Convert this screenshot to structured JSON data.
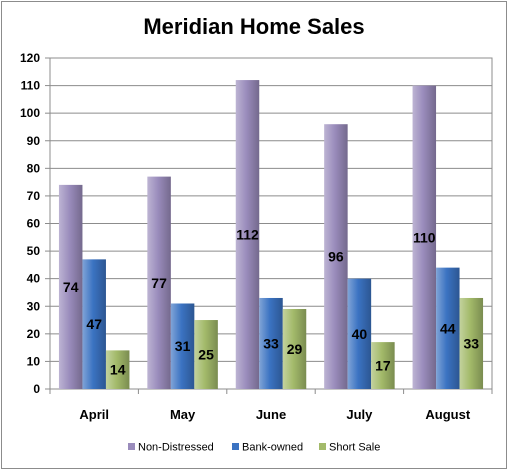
{
  "chart_data": {
    "type": "bar",
    "title": "Meridian Home Sales",
    "categories": [
      "April",
      "May",
      "June",
      "July",
      "August"
    ],
    "series": [
      {
        "name": "Non-Distressed",
        "values": [
          74,
          77,
          112,
          96,
          110
        ],
        "color": "#9a8cbc"
      },
      {
        "name": "Bank-owned",
        "values": [
          47,
          31,
          33,
          40,
          44
        ],
        "color": "#3b73c2"
      },
      {
        "name": "Short Sale",
        "values": [
          14,
          25,
          29,
          17,
          33
        ],
        "color": "#a3ba6a"
      }
    ],
    "ylim": [
      0,
      120
    ],
    "yticks": [
      0,
      10,
      20,
      30,
      40,
      50,
      60,
      70,
      80,
      90,
      100,
      110,
      120
    ],
    "grid": true,
    "legend_position": "bottom"
  }
}
